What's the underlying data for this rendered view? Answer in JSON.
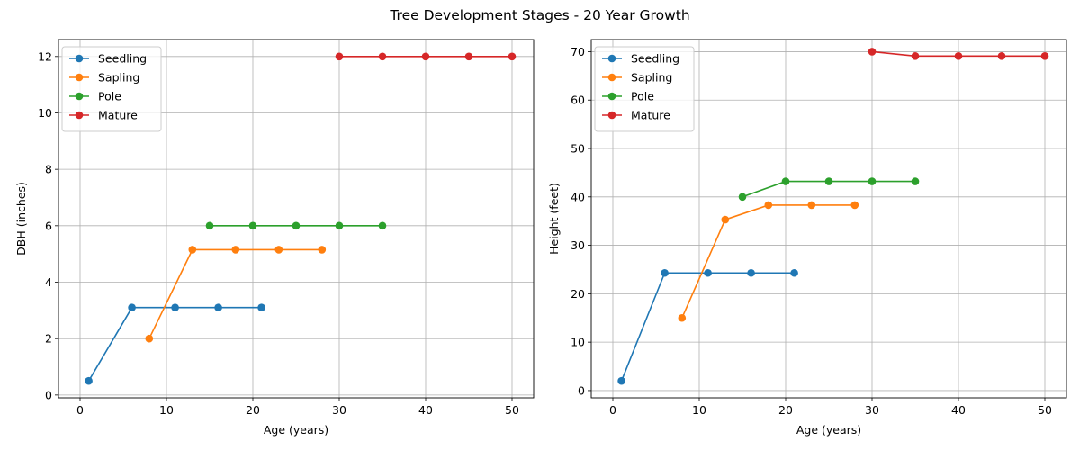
{
  "title": "Tree Development Stages - 20 Year Growth",
  "chart_data": [
    {
      "type": "line",
      "xlabel": "Age (years)",
      "ylabel": "DBH (inches)",
      "xlim": [
        -2.5,
        52.5
      ],
      "ylim": [
        -0.1,
        12.6
      ],
      "xticks": [
        0,
        10,
        20,
        30,
        40,
        50
      ],
      "yticks": [
        0,
        2,
        4,
        6,
        8,
        10,
        12
      ],
      "grid": true,
      "legend": "top-left",
      "series": [
        {
          "name": "Seedling",
          "color": "#1f77b4",
          "x": [
            1,
            6,
            11,
            16,
            21
          ],
          "y": [
            0.5,
            3.1,
            3.1,
            3.1,
            3.1
          ]
        },
        {
          "name": "Sapling",
          "color": "#ff7f0e",
          "x": [
            8,
            13,
            18,
            23,
            28
          ],
          "y": [
            2.0,
            5.15,
            5.15,
            5.15,
            5.15
          ]
        },
        {
          "name": "Pole",
          "color": "#2ca02c",
          "x": [
            15,
            20,
            25,
            30,
            35
          ],
          "y": [
            6.0,
            6.0,
            6.0,
            6.0,
            6.0
          ]
        },
        {
          "name": "Mature",
          "color": "#d62728",
          "x": [
            30,
            35,
            40,
            45,
            50
          ],
          "y": [
            12.0,
            12.0,
            12.0,
            12.0,
            12.0
          ]
        }
      ]
    },
    {
      "type": "line",
      "xlabel": "Age (years)",
      "ylabel": "Height (feet)",
      "xlim": [
        -2.5,
        52.5
      ],
      "ylim": [
        -1.5,
        72.5
      ],
      "xticks": [
        0,
        10,
        20,
        30,
        40,
        50
      ],
      "yticks": [
        0,
        10,
        20,
        30,
        40,
        50,
        60,
        70
      ],
      "grid": true,
      "legend": "top-left",
      "series": [
        {
          "name": "Seedling",
          "color": "#1f77b4",
          "x": [
            1,
            6,
            11,
            16,
            21
          ],
          "y": [
            2,
            24.3,
            24.3,
            24.3,
            24.3
          ]
        },
        {
          "name": "Sapling",
          "color": "#ff7f0e",
          "x": [
            8,
            13,
            18,
            23,
            28
          ],
          "y": [
            15,
            35.3,
            38.3,
            38.3,
            38.3
          ]
        },
        {
          "name": "Pole",
          "color": "#2ca02c",
          "x": [
            15,
            20,
            25,
            30,
            35
          ],
          "y": [
            40,
            43.2,
            43.2,
            43.2,
            43.2
          ]
        },
        {
          "name": "Mature",
          "color": "#d62728",
          "x": [
            30,
            35,
            40,
            45,
            50
          ],
          "y": [
            70,
            69.1,
            69.1,
            69.1,
            69.1
          ]
        }
      ]
    }
  ]
}
